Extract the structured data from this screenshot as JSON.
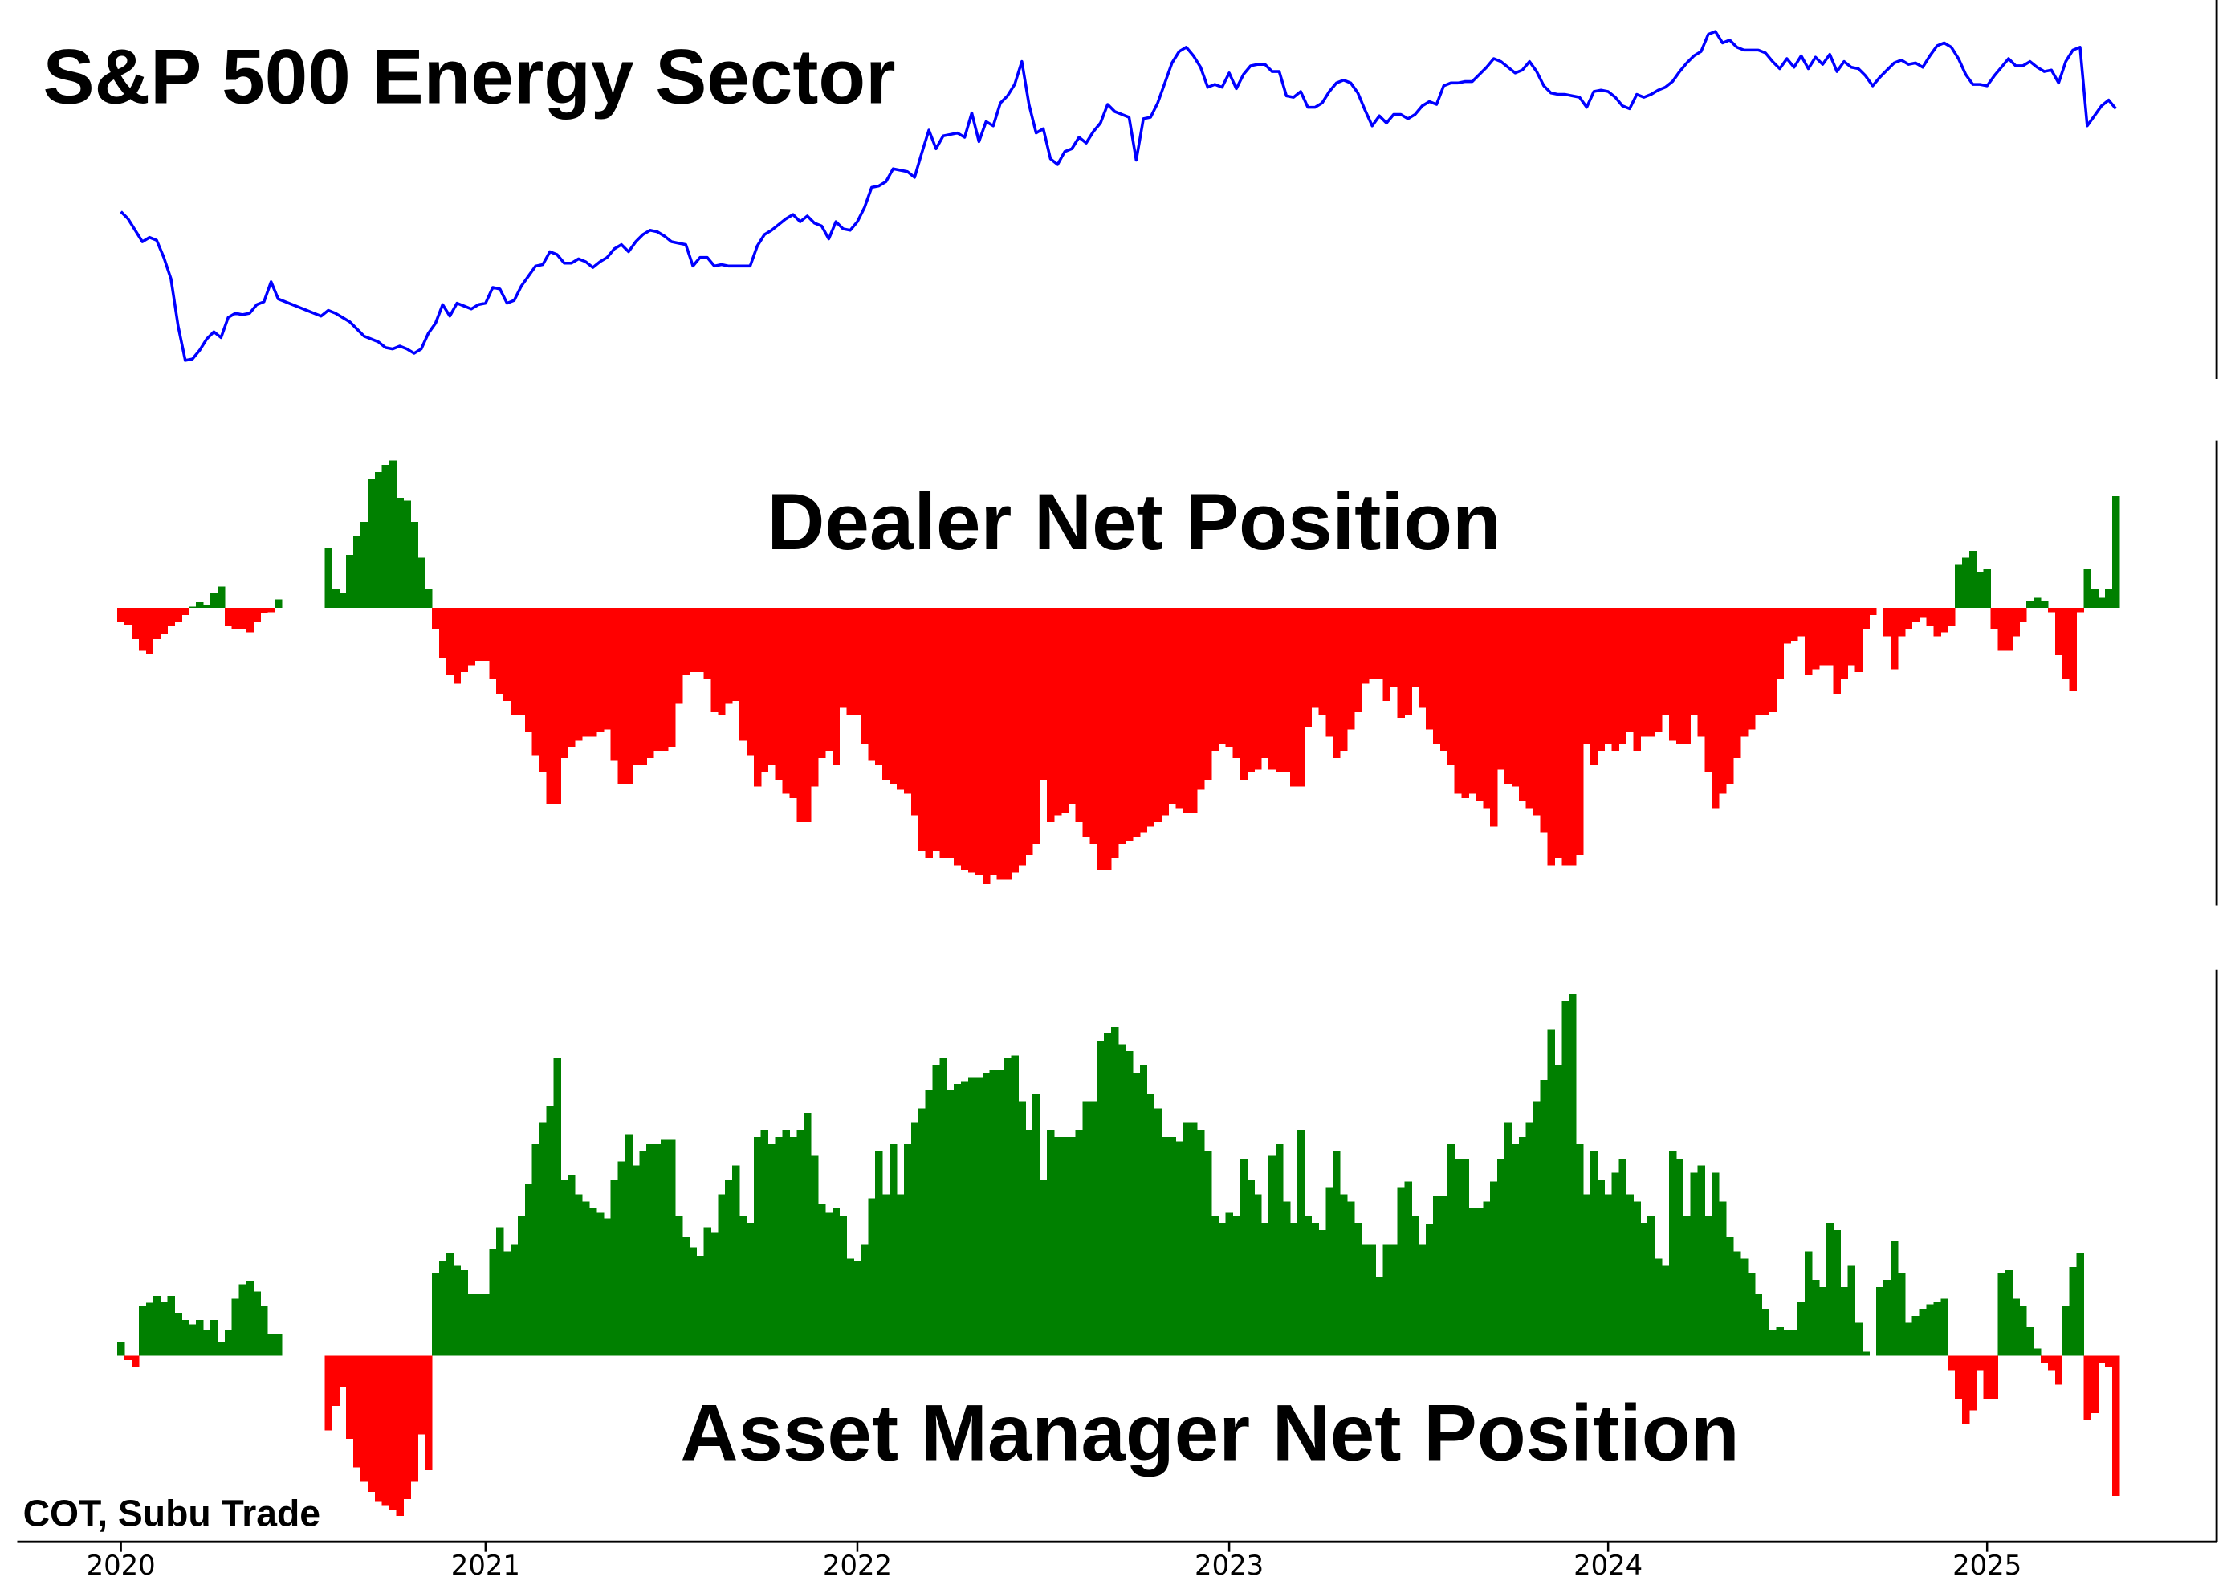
{
  "source": "COT, Subu Trade",
  "chart_data": [
    {
      "type": "line",
      "title": "S&P 500 Energy Sector",
      "color": "#0000ff",
      "ylim": [
        35,
        300
      ],
      "values": [
        152,
        147,
        139,
        131,
        134,
        132,
        120,
        105,
        72,
        48,
        49,
        55,
        63,
        68,
        64,
        78,
        81,
        80,
        81,
        87,
        89,
        103,
        91,
        89,
        87,
        85,
        83,
        81,
        79,
        83,
        81,
        78,
        75,
        70,
        65,
        63,
        61,
        57,
        56,
        58,
        56,
        53,
        56,
        67,
        74,
        87,
        79,
        88,
        86,
        84,
        87,
        88,
        99,
        98,
        88,
        90,
        100,
        107,
        114,
        115,
        124,
        122,
        116,
        116,
        119,
        117,
        113,
        117,
        120,
        126,
        129,
        124,
        131,
        136,
        139,
        138,
        135,
        131,
        130,
        129,
        114,
        120,
        120,
        114,
        115,
        114,
        114,
        114,
        114,
        128,
        136,
        139,
        143,
        147,
        150,
        145,
        149,
        144,
        142,
        133,
        145,
        140,
        139,
        145,
        155,
        169,
        170,
        173,
        182,
        181,
        180,
        176,
        193,
        209,
        196,
        205,
        206,
        207,
        204,
        221,
        201,
        215,
        212,
        228,
        233,
        241,
        257,
        227,
        207,
        210,
        189,
        185,
        194,
        196,
        204,
        200,
        208,
        214,
        227,
        222,
        220,
        218,
        188,
        217,
        218,
        228,
        242,
        256,
        264,
        267,
        261,
        253,
        239,
        241,
        239,
        249,
        238,
        248,
        254,
        255,
        255,
        250,
        250,
        233,
        232,
        236,
        225,
        225,
        228,
        236,
        242,
        244,
        242,
        235,
        223,
        212,
        219,
        214,
        220,
        220,
        217,
        220,
        226,
        229,
        227,
        240,
        242,
        242,
        243,
        243,
        248,
        253,
        259,
        257,
        253,
        249,
        251,
        257,
        250,
        240,
        235,
        234,
        234,
        233,
        232,
        225,
        236,
        237,
        236,
        232,
        226,
        224,
        234,
        232,
        234,
        237,
        239,
        243,
        250,
        256,
        261,
        264,
        276,
        278,
        270,
        272,
        267,
        265,
        265,
        265,
        263,
        257,
        252,
        259,
        253,
        261,
        252,
        260,
        255,
        262,
        250,
        257,
        253,
        252,
        247,
        240,
        246,
        251,
        256,
        258,
        255,
        256,
        253,
        261,
        268,
        270,
        267,
        259,
        248,
        241,
        241,
        240,
        247,
        253,
        259,
        254,
        254,
        257,
        253,
        250,
        251,
        242,
        257,
        265,
        267,
        212,
        219,
        226,
        230,
        224
      ]
    },
    {
      "type": "bar",
      "title": "Dealer Net Position",
      "positive_color": "#008000",
      "negative_color": "#ff0000",
      "ylim": [
        -210,
        120
      ],
      "values": [
        -10,
        -12,
        -22,
        -30,
        -32,
        -22,
        -18,
        -13,
        -10,
        -5,
        1,
        4,
        2,
        10,
        15,
        -13,
        -15,
        -15,
        -17,
        -10,
        -4,
        -3,
        6,
        null,
        null,
        null,
        null,
        null,
        null,
        42,
        13,
        10,
        37,
        50,
        60,
        90,
        95,
        100,
        103,
        77,
        75,
        60,
        35,
        13,
        -15,
        -35,
        -47,
        -53,
        -45,
        -40,
        -37,
        -37,
        -50,
        -60,
        -65,
        -75,
        -75,
        -87,
        -103,
        -115,
        -137,
        -137,
        -105,
        -97,
        -93,
        -90,
        -90,
        -87,
        -85,
        -107,
        -123,
        -123,
        -110,
        -110,
        -105,
        -100,
        -100,
        -97,
        -67,
        -47,
        -45,
        -45,
        -50,
        -73,
        -75,
        -67,
        -65,
        -93,
        -103,
        -125,
        -115,
        -110,
        -120,
        -130,
        -133,
        -150,
        -150,
        -125,
        -105,
        -100,
        -110,
        -70,
        -75,
        -75,
        -95,
        -107,
        -110,
        -120,
        -123,
        -127,
        -130,
        -145,
        -170,
        -175,
        -170,
        -175,
        -175,
        -180,
        -183,
        -185,
        -187,
        -193,
        -187,
        -190,
        -190,
        -185,
        -180,
        -173,
        -165,
        -120,
        -150,
        -145,
        -143,
        -137,
        -150,
        -160,
        -165,
        -183,
        -183,
        -175,
        -165,
        -163,
        -160,
        -157,
        -153,
        -150,
        -145,
        -137,
        -140,
        -143,
        -143,
        -127,
        -120,
        -100,
        -95,
        -97,
        -105,
        -120,
        -115,
        -113,
        -105,
        -113,
        -115,
        -115,
        -125,
        -125,
        -83,
        -70,
        -75,
        -90,
        -105,
        -100,
        -85,
        -73,
        -53,
        -50,
        -50,
        -65,
        -55,
        -77,
        -75,
        -55,
        -70,
        -85,
        -95,
        -100,
        -110,
        -130,
        -133,
        -130,
        -135,
        -140,
        -153,
        -113,
        -123,
        -125,
        -135,
        -140,
        -145,
        -157,
        -180,
        -175,
        -180,
        -180,
        -173,
        -95,
        -110,
        -100,
        -95,
        -100,
        -95,
        -87,
        -100,
        -90,
        -90,
        -87,
        -75,
        -93,
        -95,
        -95,
        -75,
        -90,
        -115,
        -140,
        -130,
        -123,
        -105,
        -90,
        -85,
        -75,
        -75,
        -73,
        -50,
        -25,
        -23,
        -20,
        -47,
        -43,
        -40,
        -40,
        -60,
        -50,
        -40,
        -45,
        -15,
        -5,
        0,
        -20,
        -43,
        -20,
        -15,
        -10,
        -7,
        -13,
        -20,
        -17,
        -13,
        30,
        35,
        40,
        25,
        27,
        -15,
        -30,
        -30,
        -20,
        -10,
        5,
        7,
        5,
        -3,
        -33,
        -50,
        -58,
        -3,
        27,
        13,
        7,
        13,
        78
      ]
    },
    {
      "type": "bar",
      "title": "Asset Manager Net Position",
      "positive_color": "#008000",
      "negative_color": "#ff0000",
      "ylim": [
        -130,
        270
      ],
      "categories": [
        "2020",
        null,
        null,
        null,
        null,
        null,
        null,
        null,
        null,
        null,
        null,
        null,
        null,
        null,
        null,
        null,
        null,
        null,
        null,
        null,
        null,
        null,
        null,
        null,
        null,
        null,
        null,
        null,
        null,
        null,
        null,
        null,
        null,
        null,
        null,
        null,
        null,
        null,
        null,
        null,
        null,
        null,
        null,
        null,
        null,
        null,
        null,
        null,
        null,
        null,
        null,
        "2021",
        null,
        null,
        null,
        null,
        null,
        null,
        null,
        null,
        null,
        null,
        null,
        null,
        null,
        null,
        null,
        null,
        null,
        null,
        null,
        null,
        null,
        null,
        null,
        null,
        null,
        null,
        null,
        null,
        null,
        null,
        null,
        null,
        null,
        null,
        null,
        null,
        null,
        null,
        null,
        null,
        null,
        null,
        null,
        null,
        null,
        null,
        null,
        null,
        null,
        null,
        null,
        "2022",
        null,
        null,
        null,
        null,
        null,
        null,
        null,
        null,
        null,
        null,
        null,
        null,
        null,
        null,
        null,
        null,
        null,
        null,
        null,
        null,
        null,
        null,
        null,
        null,
        null,
        null,
        null,
        null,
        null,
        null,
        null,
        null,
        null,
        null,
        null,
        null,
        null,
        null,
        null,
        null,
        null,
        null,
        null,
        null,
        null,
        null,
        null,
        null,
        null,
        null,
        null,
        "2023",
        null,
        null,
        null,
        null,
        null,
        null,
        null,
        null,
        null,
        null,
        null,
        null,
        null,
        null,
        null,
        null,
        null,
        null,
        null,
        null,
        null,
        null,
        null,
        null,
        null,
        null,
        null,
        null,
        null,
        null,
        null,
        null,
        null,
        null,
        null,
        null,
        null,
        null,
        null,
        null,
        null,
        null,
        null,
        null,
        null,
        null,
        null,
        null,
        null,
        null,
        null,
        null,
        "2024",
        null,
        null,
        null,
        null,
        null,
        null,
        null,
        null,
        null,
        null,
        null,
        null,
        null,
        null,
        null,
        null,
        null,
        null,
        null,
        null,
        null,
        null,
        null,
        null,
        null,
        null,
        null,
        null,
        null,
        null,
        null,
        null,
        null,
        null,
        null,
        null,
        null,
        null,
        null,
        null,
        null,
        null,
        null,
        null,
        null,
        null,
        null,
        null,
        null,
        null,
        null,
        null,
        "2025",
        null,
        null,
        null,
        null,
        null,
        null,
        null,
        null,
        null,
        null,
        null,
        null,
        null,
        null,
        null,
        null,
        null,
        null
      ],
      "values": [
        10,
        -3,
        -8,
        35,
        37,
        42,
        38,
        42,
        30,
        25,
        22,
        25,
        18,
        25,
        10,
        18,
        40,
        50,
        52,
        45,
        35,
        15,
        15,
        null,
        null,
        null,
        null,
        null,
        null,
        -52,
        -35,
        -22,
        -58,
        -78,
        -88,
        -95,
        -102,
        -105,
        -108,
        -112,
        -100,
        -88,
        -55,
        -80,
        58,
        66,
        72,
        63,
        60,
        43,
        43,
        43,
        75,
        90,
        73,
        78,
        98,
        120,
        148,
        163,
        175,
        208,
        123,
        126,
        113,
        108,
        103,
        100,
        96,
        123,
        136,
        155,
        133,
        143,
        148,
        148,
        151,
        151,
        98,
        83,
        76,
        70,
        90,
        86,
        113,
        123,
        133,
        98,
        93,
        153,
        158,
        148,
        153,
        158,
        153,
        158,
        170,
        140,
        106,
        100,
        103,
        98,
        68,
        66,
        78,
        110,
        143,
        113,
        148,
        113,
        148,
        163,
        173,
        186,
        203,
        208,
        186,
        190,
        192,
        195,
        195,
        198,
        200,
        200,
        208,
        210,
        178,
        158,
        183,
        123,
        158,
        153,
        153,
        153,
        158,
        178,
        178,
        220,
        226,
        230,
        218,
        213,
        198,
        203,
        183,
        173,
        153,
        153,
        150,
        163,
        163,
        158,
        143,
        98,
        93,
        100,
        98,
        138,
        123,
        113,
        93,
        140,
        148,
        108,
        93,
        158,
        98,
        93,
        88,
        118,
        143,
        113,
        108,
        93,
        78,
        78,
        55,
        78,
        78,
        118,
        122,
        98,
        78,
        92,
        112,
        112,
        148,
        138,
        138,
        103,
        103,
        108,
        122,
        138,
        163,
        148,
        153,
        163,
        178,
        193,
        228,
        203,
        248,
        253,
        148,
        113,
        143,
        123,
        113,
        128,
        138,
        113,
        108,
        93,
        98,
        68,
        63,
        143,
        138,
        98,
        128,
        133,
        98,
        128,
        108,
        83,
        73,
        68,
        58,
        43,
        33,
        18,
        20,
        18,
        18,
        38,
        73,
        53,
        48,
        93,
        88,
        48,
        63,
        23,
        3,
        0,
        48,
        53,
        80,
        58,
        23,
        28,
        33,
        36,
        38,
        40,
        -10,
        -30,
        -48,
        -38,
        -10,
        -30,
        -30,
        58,
        60,
        40,
        35,
        20,
        5,
        -5,
        -10,
        -20,
        35,
        62,
        72,
        -45,
        -40,
        -5,
        -8,
        -98
      ]
    }
  ]
}
